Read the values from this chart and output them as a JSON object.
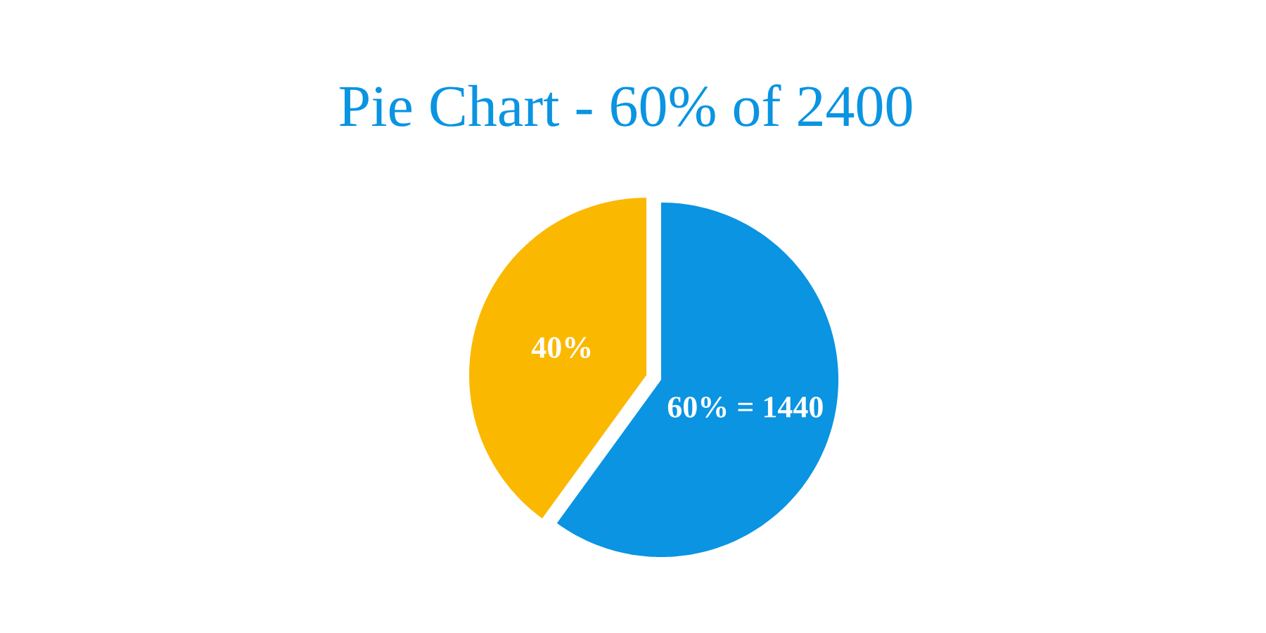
{
  "chart_data": {
    "type": "pie",
    "title": "Pie Chart - 60% of 2400",
    "categories": [
      null,
      null
    ],
    "values": [
      60,
      40
    ],
    "colors": [
      "#0a94e2",
      "#fbb800"
    ],
    "value_labels": [
      "60% = 1440",
      "40%"
    ]
  }
}
